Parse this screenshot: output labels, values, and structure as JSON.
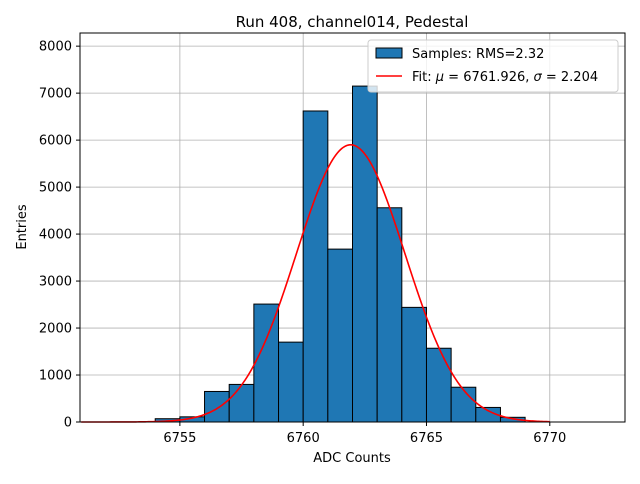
{
  "chart_data": {
    "type": "bar",
    "title": "Run 408, channel014, Pedestal",
    "xlabel": "ADC Counts",
    "ylabel": "Entries",
    "xlim": [
      6750.95,
      6773.05
    ],
    "ylim": [
      0,
      8280
    ],
    "xticks": [
      6755,
      6760,
      6765,
      6770
    ],
    "xtick_labels": [
      "6755",
      "6760",
      "6765",
      "6770"
    ],
    "yticks": [
      0,
      1000,
      2000,
      3000,
      4000,
      5000,
      6000,
      7000,
      8000
    ],
    "ytick_labels": [
      "0",
      "1000",
      "2000",
      "3000",
      "4000",
      "5000",
      "6000",
      "7000",
      "8000"
    ],
    "grid": true,
    "legend_position": "top-right",
    "histogram": {
      "name": "Samples: RMS=2.32",
      "color": "#1f77b4",
      "edge_color": "#000000",
      "bin_edges": [
        6754,
        6755,
        6756,
        6757,
        6758,
        6759,
        6760,
        6761,
        6762,
        6763,
        6764,
        6765,
        6766,
        6767,
        6768,
        6769
      ],
      "values": [
        70,
        110,
        650,
        800,
        2510,
        1700,
        6620,
        3680,
        7150,
        4560,
        2440,
        1570,
        740,
        310,
        100
      ]
    },
    "fit": {
      "name": "Fit: μ = 6761.926, σ = 2.204",
      "name_prefix": "Fit: ",
      "mu_symbol": "μ",
      "mu_text": " = 6761.926, ",
      "sigma_symbol": "σ",
      "sigma_text": " = 2.204",
      "color": "#ff0000",
      "mu": 6761.926,
      "sigma": 2.204,
      "amplitude": 5900,
      "x_range": [
        6751,
        6770
      ]
    }
  }
}
